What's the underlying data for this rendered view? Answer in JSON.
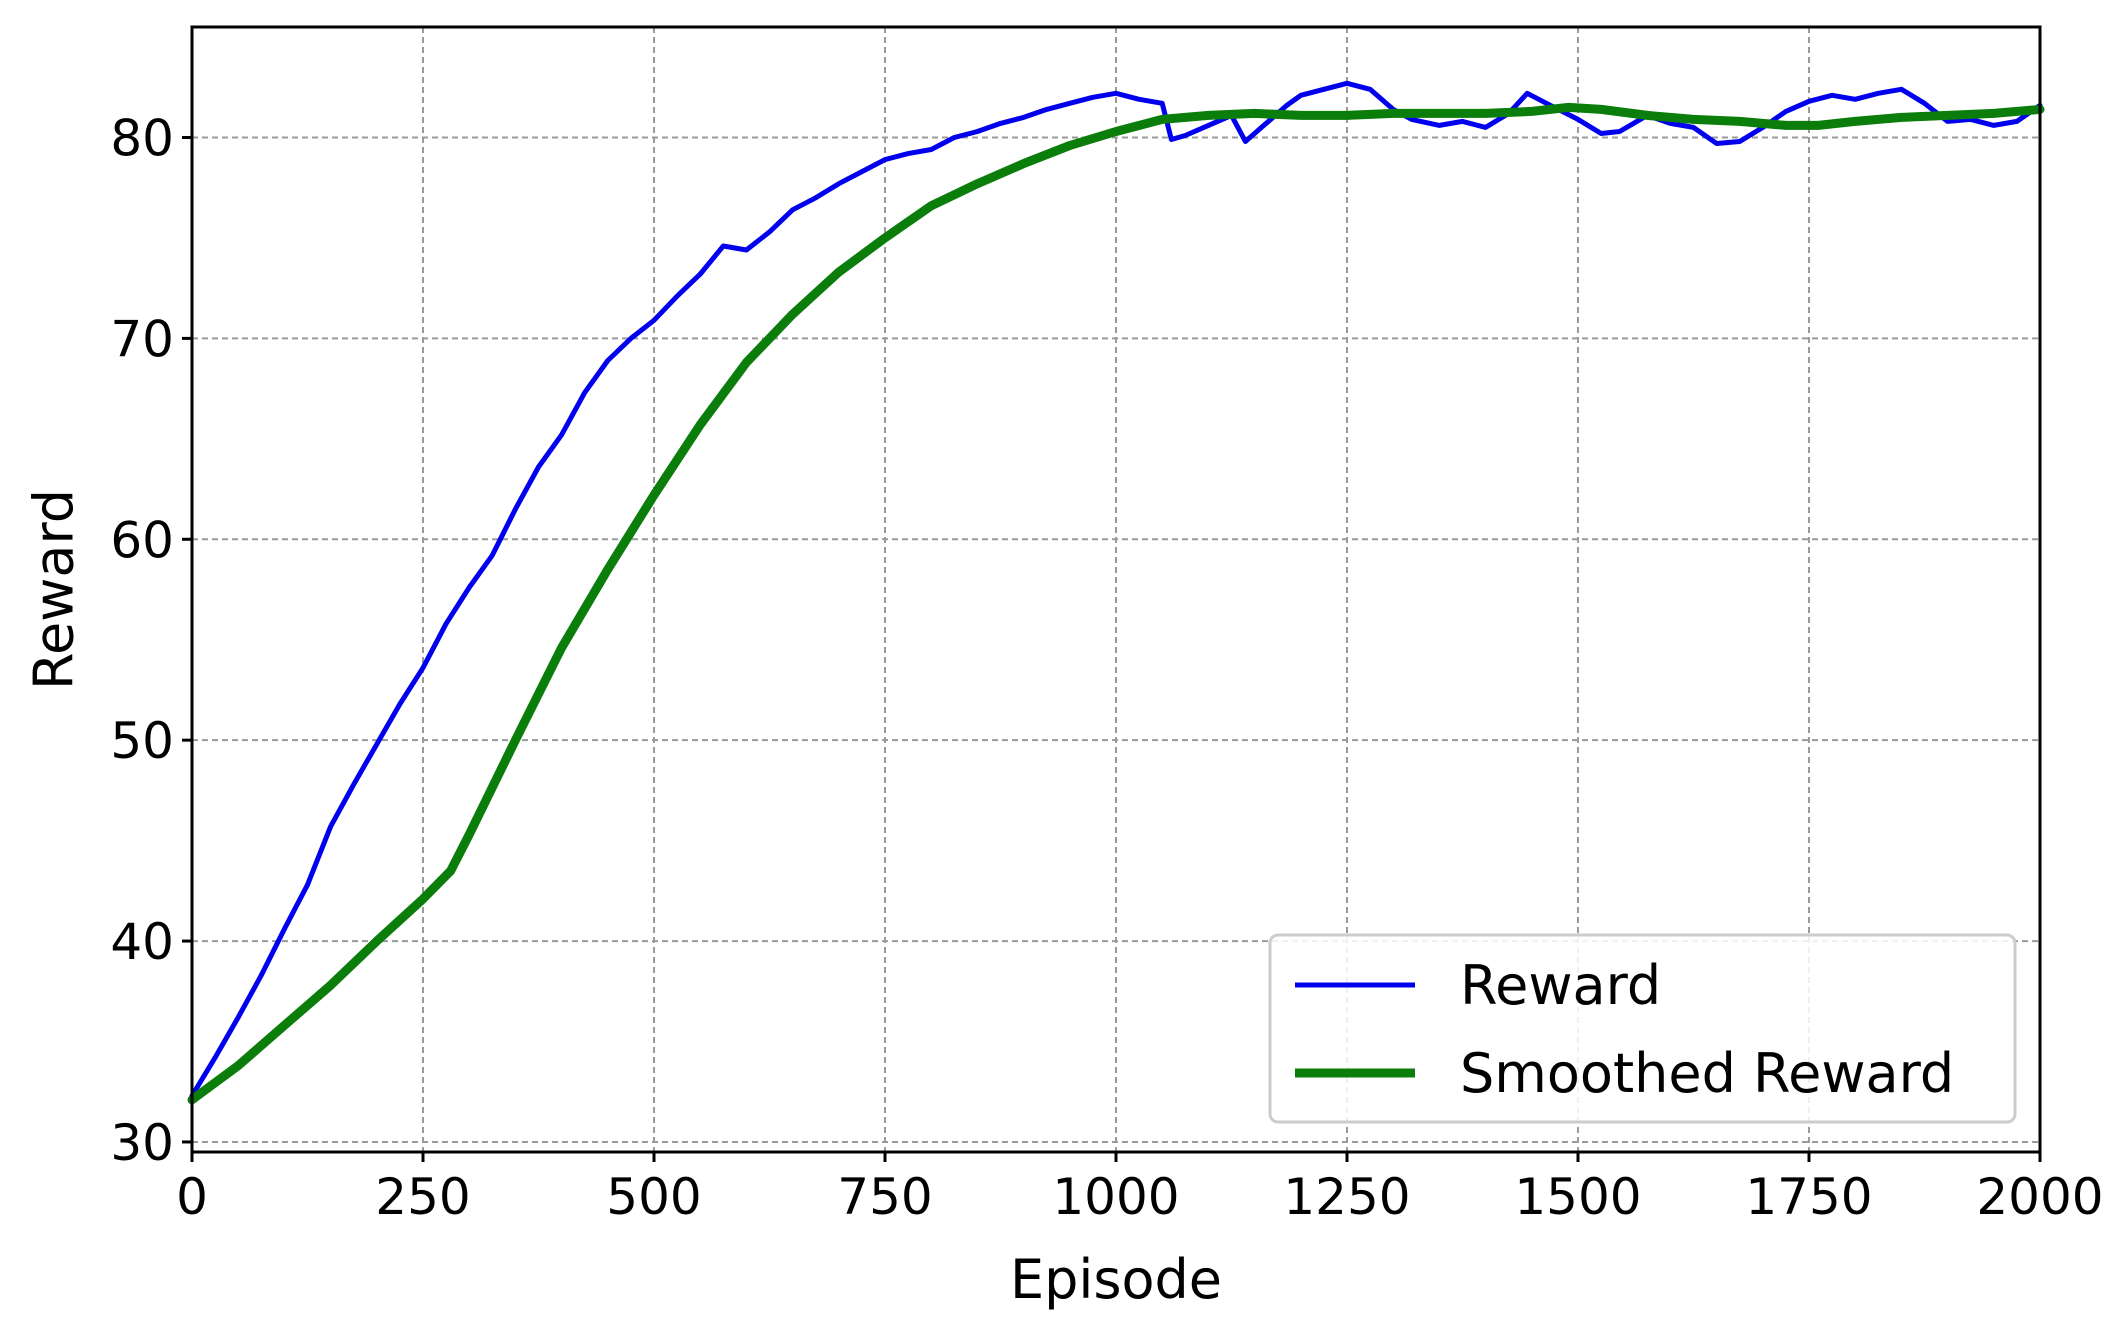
{
  "chart_data": {
    "type": "line",
    "xlabel": "Episode",
    "ylabel": "Reward",
    "xlim": [
      0,
      2000
    ],
    "ylim": [
      29.5,
      85.5
    ],
    "xticks": [
      0,
      250,
      500,
      750,
      1000,
      1250,
      1500,
      1750,
      2000
    ],
    "xtick_labels": [
      "0",
      "250",
      "500",
      "750",
      "1000",
      "1250",
      "1500",
      "1750",
      "2000"
    ],
    "yticks": [
      30,
      40,
      50,
      60,
      70,
      80
    ],
    "ytick_labels": [
      "30",
      "40",
      "50",
      "60",
      "70",
      "80"
    ],
    "grid": true,
    "legend_position": "lower-right",
    "series": [
      {
        "name": "Reward",
        "color": "#0000ee",
        "x": [
          0,
          25,
          50,
          75,
          100,
          125,
          150,
          175,
          200,
          225,
          250,
          275,
          300,
          325,
          350,
          375,
          400,
          425,
          450,
          475,
          500,
          525,
          550,
          575,
          600,
          625,
          650,
          675,
          700,
          725,
          750,
          775,
          800,
          825,
          850,
          875,
          900,
          925,
          950,
          975,
          1000,
          1025,
          1050,
          1060,
          1075,
          1100,
          1125,
          1140,
          1160,
          1185,
          1200,
          1225,
          1250,
          1275,
          1300,
          1320,
          1350,
          1375,
          1400,
          1425,
          1445,
          1470,
          1500,
          1525,
          1545,
          1575,
          1600,
          1625,
          1650,
          1675,
          1700,
          1725,
          1750,
          1775,
          1800,
          1825,
          1850,
          1875,
          1900,
          1925,
          1950,
          1975,
          2000
        ],
        "y": [
          32.3,
          34.2,
          36.2,
          38.3,
          40.6,
          42.8,
          45.7,
          47.8,
          49.8,
          51.8,
          53.6,
          55.8,
          57.6,
          59.2,
          61.5,
          63.6,
          65.2,
          67.3,
          68.9,
          70.0,
          70.9,
          72.1,
          73.2,
          74.6,
          74.4,
          75.3,
          76.4,
          77.0,
          77.7,
          78.3,
          78.9,
          79.2,
          79.4,
          80.0,
          80.3,
          80.7,
          81.0,
          81.4,
          81.7,
          82.0,
          82.2,
          81.9,
          81.7,
          79.9,
          80.1,
          80.6,
          81.1,
          79.8,
          80.6,
          81.6,
          82.1,
          82.4,
          82.7,
          82.4,
          81.4,
          80.9,
          80.6,
          80.8,
          80.5,
          81.2,
          82.2,
          81.6,
          80.9,
          80.2,
          80.3,
          81.1,
          80.7,
          80.5,
          79.7,
          79.8,
          80.5,
          81.3,
          81.8,
          82.1,
          81.9,
          82.2,
          82.4,
          81.7,
          80.8,
          80.9,
          80.6,
          80.8,
          81.6
        ]
      },
      {
        "name": "Smoothed Reward",
        "color": "#0a7d0a",
        "x": [
          0,
          50,
          100,
          150,
          200,
          250,
          280,
          300,
          350,
          400,
          450,
          500,
          550,
          600,
          650,
          700,
          750,
          800,
          850,
          900,
          950,
          1000,
          1050,
          1100,
          1150,
          1200,
          1250,
          1300,
          1350,
          1400,
          1450,
          1490,
          1525,
          1575,
          1625,
          1675,
          1725,
          1760,
          1800,
          1850,
          1900,
          1950,
          2000
        ],
        "y": [
          32.1,
          33.8,
          35.8,
          37.8,
          40.0,
          42.1,
          43.5,
          45.3,
          50.0,
          54.6,
          58.5,
          62.2,
          65.7,
          68.8,
          71.2,
          73.3,
          75.0,
          76.6,
          77.7,
          78.7,
          79.6,
          80.3,
          80.9,
          81.1,
          81.2,
          81.1,
          81.1,
          81.2,
          81.2,
          81.2,
          81.3,
          81.5,
          81.4,
          81.1,
          80.9,
          80.8,
          80.6,
          80.6,
          80.8,
          81.0,
          81.1,
          81.2,
          81.4
        ]
      }
    ]
  }
}
